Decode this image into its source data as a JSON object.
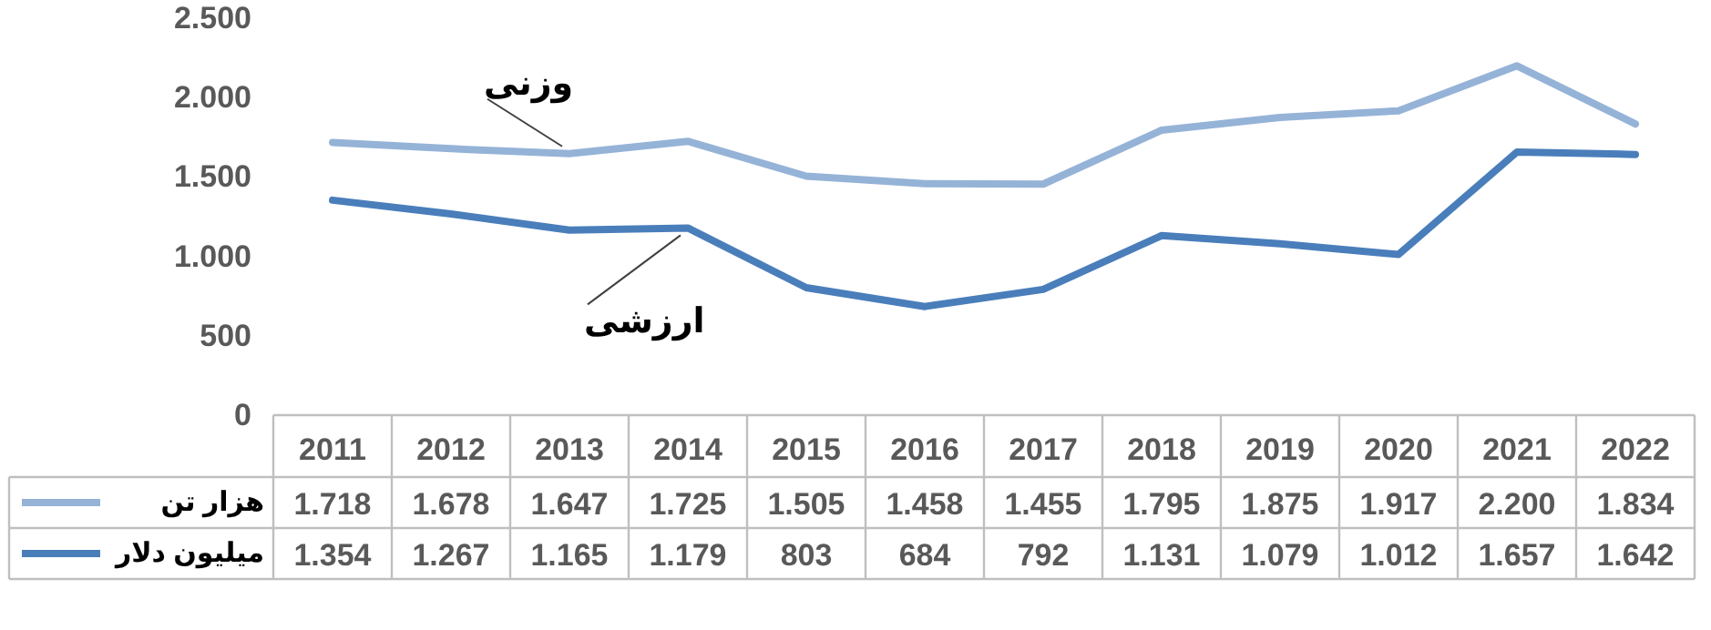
{
  "chart_data": {
    "type": "line",
    "categories": [
      "2011",
      "2012",
      "2013",
      "2014",
      "2015",
      "2016",
      "2017",
      "2018",
      "2019",
      "2020",
      "2021",
      "2022"
    ],
    "series": [
      {
        "name": "هزار تن",
        "color": "#95b3d7",
        "values": [
          1718,
          1678,
          1647,
          1725,
          1505,
          1458,
          1455,
          1795,
          1875,
          1917,
          2200,
          1834
        ],
        "value_labels": [
          "1.718",
          "1.678",
          "1.647",
          "1.725",
          "1.505",
          "1.458",
          "1.455",
          "1.795",
          "1.875",
          "1.917",
          "2.200",
          "1.834"
        ]
      },
      {
        "name": "میلیون دلار",
        "color": "#4a7ebb",
        "values": [
          1354,
          1267,
          1165,
          1179,
          803,
          684,
          792,
          1131,
          1079,
          1012,
          1657,
          1642
        ],
        "value_labels": [
          "1.354",
          "1.267",
          "1.165",
          "1.179",
          "803",
          "684",
          "792",
          "1.131",
          "1.079",
          "1.012",
          "1.657",
          "1.642"
        ]
      }
    ],
    "ylim": [
      0,
      2500
    ],
    "yticks": [
      0,
      500,
      {
        "value": 1000,
        "label": "1.000"
      },
      {
        "value": 1500,
        "label": "1.500"
      },
      {
        "value": 2000,
        "label": "2.000"
      },
      {
        "value": 2500,
        "label": "2.500"
      }
    ],
    "annotations": [
      {
        "text": "وزنی",
        "x": "2013",
        "y": 1647
      },
      {
        "text": "ارزشی",
        "x": "2014",
        "y": 1179
      }
    ],
    "legend": "bottom left",
    "grid": false,
    "marker": "none",
    "line_style": "solid"
  }
}
